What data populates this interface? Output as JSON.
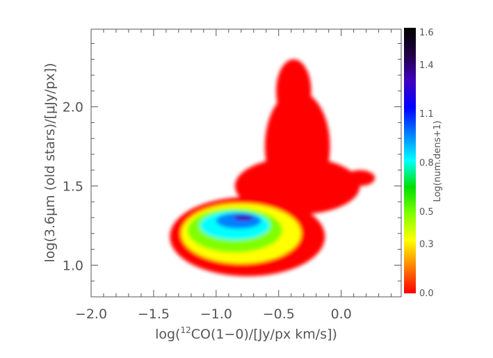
{
  "chart_data": {
    "type": "heatmap",
    "title": "",
    "xlabel": "log(12CO(1-0)/[Jy/px km/s])",
    "xlabel_parts": {
      "pre": "log(",
      "sup": "12",
      "post": "CO(1−0)/[Jy/px km/s])"
    },
    "ylabel": "log(3.6μm (old stars)/[μJy/px])",
    "xlim": [
      -2.0,
      0.48
    ],
    "ylim": [
      0.8,
      2.49
    ],
    "xticks": [
      {
        "v": -2.0,
        "label": "−2.0"
      },
      {
        "v": -1.5,
        "label": "−1.5"
      },
      {
        "v": -1.0,
        "label": "−1.0"
      },
      {
        "v": -0.5,
        "label": "−0.5"
      },
      {
        "v": 0.0,
        "label": "0.0"
      }
    ],
    "yticks": [
      {
        "v": 1.0,
        "label": "1.0"
      },
      {
        "v": 1.5,
        "label": "1.5"
      },
      {
        "v": 2.0,
        "label": "2.0"
      }
    ],
    "colorbar": {
      "label": "Log(num.dens+1)",
      "range": [
        0.0,
        1.6
      ],
      "ticks": [
        {
          "v": 0.0,
          "label": "0.0"
        },
        {
          "v": 0.3,
          "label": "0.3"
        },
        {
          "v": 0.5,
          "label": "0.5"
        },
        {
          "v": 0.8,
          "label": "0.8"
        },
        {
          "v": 1.1,
          "label": "1.1"
        },
        {
          "v": 1.4,
          "label": "1.4"
        },
        {
          "v": 1.6,
          "label": "1.6"
        }
      ],
      "colormap": [
        "#ff0000",
        "#ff8000",
        "#ffff00",
        "#80ff00",
        "#00e000",
        "#00ffff",
        "#0080ff",
        "#0000ff",
        "#4000c0",
        "#200040",
        "#000000"
      ]
    },
    "density_regions": [
      {
        "x": -0.75,
        "y": 1.18,
        "rx": 0.62,
        "ry": 0.25,
        "level": 0.05
      },
      {
        "x": -0.35,
        "y": 1.5,
        "rx": 0.5,
        "ry": 0.18,
        "level": 0.05
      },
      {
        "x": -0.35,
        "y": 1.75,
        "rx": 0.26,
        "ry": 0.35,
        "level": 0.05
      },
      {
        "x": -0.38,
        "y": 2.1,
        "rx": 0.14,
        "ry": 0.2,
        "level": 0.05
      },
      {
        "x": 0.15,
        "y": 1.55,
        "rx": 0.12,
        "ry": 0.05,
        "level": 0.05
      },
      {
        "x": -0.8,
        "y": 1.2,
        "rx": 0.48,
        "ry": 0.19,
        "level": 0.3
      },
      {
        "x": -0.85,
        "y": 1.22,
        "rx": 0.38,
        "ry": 0.14,
        "level": 0.5
      },
      {
        "x": -0.85,
        "y": 1.25,
        "rx": 0.28,
        "ry": 0.09,
        "level": 0.8
      },
      {
        "x": -0.82,
        "y": 1.28,
        "rx": 0.18,
        "ry": 0.05,
        "level": 1.0
      },
      {
        "x": -0.78,
        "y": 1.3,
        "rx": 0.08,
        "ry": 0.02,
        "level": 1.35
      }
    ]
  }
}
